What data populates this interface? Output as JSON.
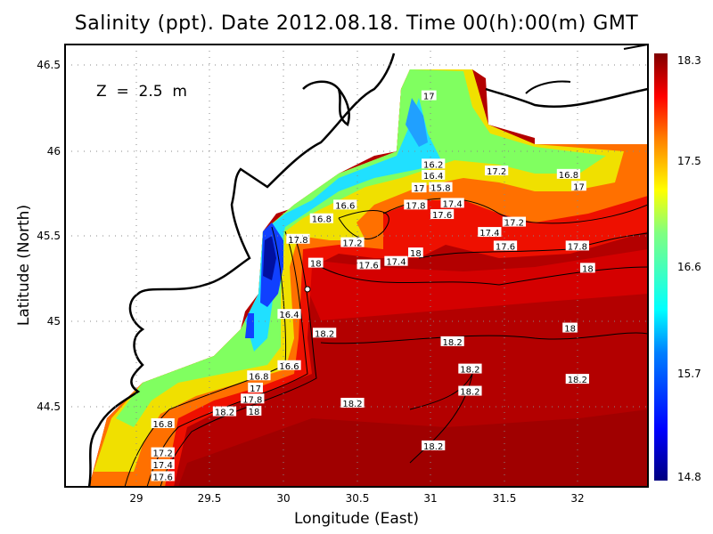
{
  "chart_data": {
    "type": "heatmap",
    "title": "Salinity (ppt). Date 2012.08.18. Time 00(h):00(m) GMT",
    "annotation": "Z  =  2.5  m",
    "xlabel": "Longitude (East)",
    "ylabel": "Latitude (North)",
    "xlim": [
      28.515,
      32.48
    ],
    "ylim": [
      44.03,
      46.62
    ],
    "xticks": [
      "29",
      "29.5",
      "30",
      "30.5",
      "31",
      "31.5",
      "32"
    ],
    "yticks": [
      "44.5",
      "45",
      "45.5",
      "46",
      "46.5"
    ],
    "grid": true,
    "colorbar": {
      "min": 14.8,
      "max": 18.3,
      "ticks": [
        "18.3",
        "17.5",
        "16.6",
        "15.7",
        "14.8"
      ],
      "placement": "right"
    },
    "contour_labels": [
      {
        "text": "17",
        "lon": 30.99,
        "lat": 46.32
      },
      {
        "text": "16.2",
        "lon": 31.02,
        "lat": 45.92
      },
      {
        "text": "16.4",
        "lon": 31.02,
        "lat": 45.87
      },
      {
        "text": "15.8",
        "lon": 31.07,
        "lat": 45.83
      },
      {
        "text": "17",
        "lon": 31.02,
        "lat": 45.78
      },
      {
        "text": "17.2",
        "lon": 31.45,
        "lat": 45.88
      },
      {
        "text": "16.8",
        "lon": 31.94,
        "lat": 45.86
      },
      {
        "text": "17",
        "lon": 32.01,
        "lat": 45.79
      },
      {
        "text": "17.4",
        "lon": 31.15,
        "lat": 45.69
      },
      {
        "text": "17.8",
        "lon": 30.9,
        "lat": 45.68
      },
      {
        "text": "17.6",
        "lon": 31.08,
        "lat": 45.64
      },
      {
        "text": "16.6",
        "lon": 30.42,
        "lat": 45.68
      },
      {
        "text": "16.8",
        "lon": 30.26,
        "lat": 45.6
      },
      {
        "text": "17.8",
        "lon": 30.1,
        "lat": 45.48
      },
      {
        "text": "17.2",
        "lon": 30.47,
        "lat": 45.46
      },
      {
        "text": "17.6",
        "lon": 30.58,
        "lat": 45.33
      },
      {
        "text": "17.4",
        "lon": 30.67,
        "lat": 45.35
      },
      {
        "text": "18",
        "lon": 30.9,
        "lat": 45.4
      },
      {
        "text": "18",
        "lon": 30.22,
        "lat": 45.34
      },
      {
        "text": "17.2",
        "lon": 31.57,
        "lat": 45.58
      },
      {
        "text": "17.4",
        "lon": 31.5,
        "lat": 45.52
      },
      {
        "text": "17.6",
        "lon": 31.51,
        "lat": 45.44
      },
      {
        "text": "17.8",
        "lon": 32.0,
        "lat": 45.44
      },
      {
        "text": "18",
        "lon": 32.07,
        "lat": 45.31
      },
      {
        "text": "16.4",
        "lon": 30.04,
        "lat": 45.04
      },
      {
        "text": "18.2",
        "lon": 30.28,
        "lat": 44.93
      },
      {
        "text": "18",
        "lon": 31.95,
        "lat": 44.96
      },
      {
        "text": "18.2",
        "lon": 31.15,
        "lat": 44.88
      },
      {
        "text": "16.6",
        "lon": 30.04,
        "lat": 44.74
      },
      {
        "text": "18.2",
        "lon": 31.27,
        "lat": 44.72
      },
      {
        "text": "18.2",
        "lon": 32.0,
        "lat": 44.66
      },
      {
        "text": "16.8",
        "lon": 29.93,
        "lat": 44.68
      },
      {
        "text": "17",
        "lon": 29.81,
        "lat": 44.64
      },
      {
        "text": "18.2",
        "lon": 31.27,
        "lat": 44.59
      },
      {
        "text": "17.8",
        "lon": 29.79,
        "lat": 44.56
      },
      {
        "text": "18",
        "lon": 29.8,
        "lat": 44.52
      },
      {
        "text": "18.2",
        "lon": 30.47,
        "lat": 44.52
      },
      {
        "text": "18.2",
        "lon": 29.6,
        "lat": 44.47
      },
      {
        "text": "16.8",
        "lon": 29.18,
        "lat": 44.4
      },
      {
        "text": "18.2",
        "lon": 31.02,
        "lat": 44.27
      },
      {
        "text": "17.2",
        "lon": 29.18,
        "lat": 44.23
      },
      {
        "text": "17.4",
        "lon": 29.18,
        "lat": 44.16
      },
      {
        "text": "17.6",
        "lon": 29.18,
        "lat": 44.09
      }
    ]
  }
}
